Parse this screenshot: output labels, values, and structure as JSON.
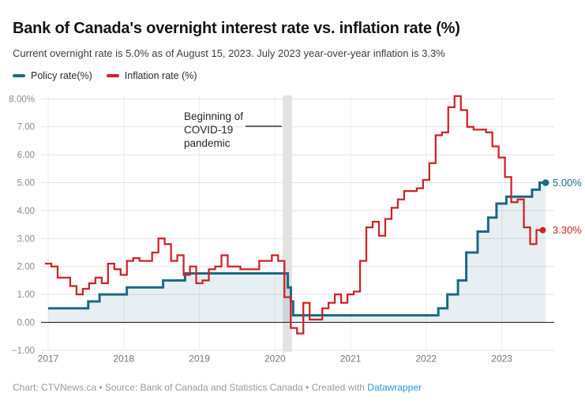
{
  "header": {
    "title": "Bank of Canada's overnight interest rate vs. inflation rate (%)",
    "subtitle": "Current overnight rate is 5.0% as of August 15, 2023. July 2023 year-over-year inflation is 3.3%"
  },
  "legend": {
    "items": [
      {
        "label": "Policy rate(%)",
        "color": "#1d6882"
      },
      {
        "label": "Inflation rate (%)",
        "color": "#cf2127"
      }
    ]
  },
  "chart_data": {
    "type": "line",
    "subtype": "step",
    "title": "Bank of Canada's overnight interest rate vs. inflation rate (%)",
    "x_axis": {
      "labels": [
        "2017",
        "2018",
        "2019",
        "2020",
        "2021",
        "2022",
        "2023"
      ],
      "values": [
        2017,
        2018,
        2019,
        2020,
        2021,
        2022,
        2023
      ],
      "range": [
        2016.95,
        2023.7
      ],
      "grid": true
    },
    "y_axis": {
      "labels": [
        "8.00%",
        "7.00",
        "6.00",
        "5.00",
        "4.00",
        "3.00",
        "2.00",
        "1.00",
        "0.00",
        "−1.00"
      ],
      "values": [
        8,
        7,
        6,
        5,
        4,
        3,
        2,
        1,
        0,
        -1
      ],
      "range": [
        -1,
        8
      ],
      "grid": true
    },
    "series": [
      {
        "name": "Policy rate(%)",
        "color": "#1d6882",
        "step": "after",
        "line_width": 3,
        "area": true,
        "area_fill": "rgba(29,102,128,0.10)",
        "points": [
          [
            2017.0,
            0.5
          ],
          [
            2017.53,
            0.75
          ],
          [
            2017.68,
            1.0
          ],
          [
            2018.04,
            1.25
          ],
          [
            2018.52,
            1.5
          ],
          [
            2018.81,
            1.75
          ],
          [
            2020.17,
            1.25
          ],
          [
            2020.21,
            0.75
          ],
          [
            2020.24,
            0.25
          ],
          [
            2022.16,
            0.5
          ],
          [
            2022.28,
            1.0
          ],
          [
            2022.42,
            1.5
          ],
          [
            2022.53,
            2.5
          ],
          [
            2022.68,
            3.25
          ],
          [
            2022.82,
            3.75
          ],
          [
            2022.93,
            4.25
          ],
          [
            2023.06,
            4.5
          ],
          [
            2023.4,
            4.75
          ],
          [
            2023.5,
            5.0
          ]
        ],
        "end_x": 2023.58,
        "end_value": 5.0,
        "end_label": "5.00%"
      },
      {
        "name": "Inflation rate (%)",
        "color": "#cf2127",
        "step": "center",
        "line_width": 2.25,
        "x_start": 2017.0,
        "x_step": 0.0833333,
        "values": [
          2.1,
          2.0,
          1.6,
          1.6,
          1.3,
          1.0,
          1.2,
          1.4,
          1.6,
          1.4,
          2.1,
          1.9,
          1.7,
          2.2,
          2.3,
          2.2,
          2.2,
          2.5,
          3.0,
          2.8,
          2.2,
          2.4,
          1.7,
          2.0,
          1.4,
          1.5,
          1.9,
          2.0,
          2.4,
          2.0,
          2.0,
          1.9,
          1.9,
          1.9,
          2.2,
          2.2,
          2.4,
          2.2,
          0.9,
          -0.2,
          -0.4,
          0.7,
          0.1,
          0.1,
          0.5,
          0.7,
          1.0,
          0.7,
          1.0,
          1.1,
          2.2,
          3.4,
          3.6,
          3.1,
          3.7,
          4.1,
          4.4,
          4.7,
          4.7,
          4.8,
          5.1,
          5.7,
          6.7,
          6.8,
          7.7,
          8.1,
          7.6,
          7.0,
          6.9,
          6.9,
          6.8,
          6.3,
          5.9,
          5.2,
          4.3,
          4.4,
          3.4,
          2.8,
          3.3
        ],
        "end_value": 3.3,
        "end_label": "3.30%"
      }
    ],
    "annotation": {
      "text_lines": [
        "Beginning of",
        "COVID-19",
        "pandemic"
      ],
      "color": "#262626"
    },
    "covid_band": {
      "x_from": 2020.1,
      "x_to": 2020.225,
      "color": "#e3e3e3"
    },
    "grid_color": "#e2e2e2",
    "zero_line_color": "#1a1a1a"
  },
  "footer": {
    "prefix": "Chart: CTVNews.ca • Source: Bank of Canada and Statistics Canada • Created with ",
    "link": "Datawrapper"
  }
}
